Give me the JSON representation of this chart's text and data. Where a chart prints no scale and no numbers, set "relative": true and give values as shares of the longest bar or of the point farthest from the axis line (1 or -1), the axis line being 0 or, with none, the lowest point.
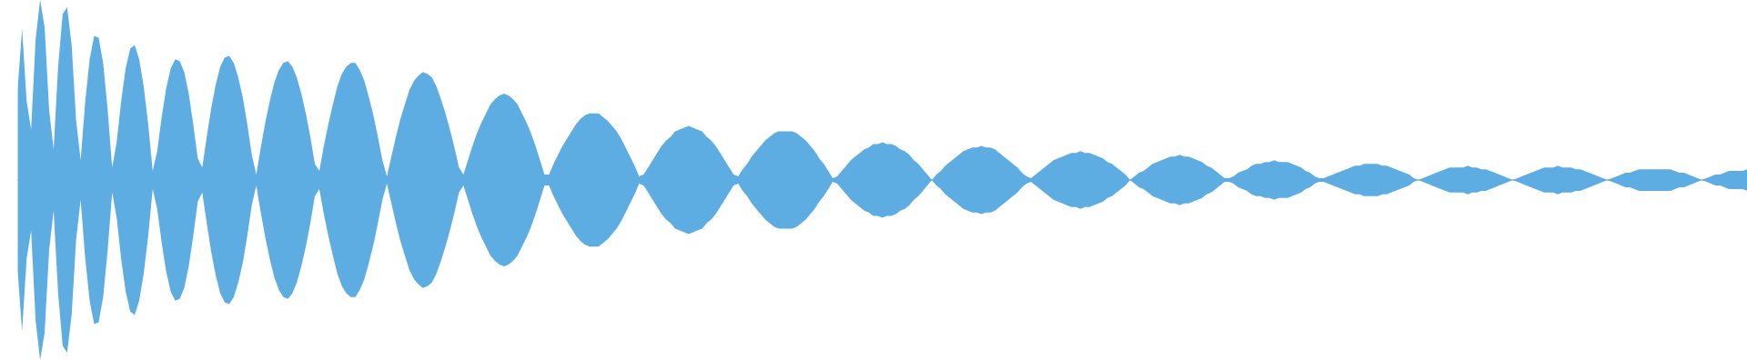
{
  "chart_data": {
    "type": "area",
    "relative": true,
    "categories": [
      null,
      null,
      null,
      null,
      null,
      null,
      null,
      null,
      null,
      null,
      null,
      null,
      null,
      null,
      null,
      null,
      null,
      null,
      null,
      null,
      null,
      null,
      null,
      null,
      null,
      null,
      null,
      null,
      null,
      null,
      null,
      null,
      null,
      null,
      null,
      null,
      null,
      null,
      null,
      null,
      null,
      null,
      null,
      null,
      null,
      null,
      null,
      null,
      null,
      null,
      null,
      null,
      null,
      null,
      null,
      null,
      null,
      null,
      null,
      null,
      null,
      null,
      null,
      null,
      null,
      null,
      null,
      null,
      null,
      null,
      null,
      null,
      null,
      null,
      null,
      null,
      null,
      null,
      null,
      null,
      null,
      null,
      null,
      null,
      null,
      null,
      null,
      null,
      null,
      null,
      null,
      null,
      null,
      null,
      null,
      null,
      null,
      null,
      null,
      null,
      null,
      null,
      null,
      null,
      null,
      null,
      null,
      null,
      null,
      null,
      null,
      null,
      null,
      null,
      null,
      null,
      null,
      null,
      null,
      null,
      null,
      null,
      null,
      null,
      null,
      null,
      null,
      null,
      null,
      null,
      null,
      null,
      null,
      null,
      null,
      null,
      null,
      null,
      null,
      null,
      null,
      null,
      null,
      null,
      null,
      null,
      null,
      null,
      null,
      null,
      null,
      null,
      null,
      null,
      null,
      null,
      null,
      null,
      null,
      null,
      null,
      null,
      null,
      null,
      null,
      null,
      null,
      null,
      null,
      null,
      null,
      null,
      null,
      null,
      null,
      null,
      null,
      null,
      null,
      null,
      null,
      null,
      null,
      null,
      null,
      null,
      null,
      null,
      null,
      null,
      null,
      null,
      null,
      null,
      null,
      null,
      null,
      null,
      null,
      null,
      null,
      null,
      null,
      null,
      null,
      null,
      null,
      null,
      null,
      null,
      null,
      null,
      null,
      null,
      null,
      null,
      null,
      null,
      null,
      null,
      null,
      null,
      null,
      null,
      null,
      null,
      null,
      null,
      null,
      null,
      null,
      null,
      null,
      null,
      null,
      null,
      null,
      null,
      null,
      null,
      null,
      null,
      null,
      null,
      null,
      null,
      null,
      null,
      null,
      null,
      null,
      null,
      null,
      null,
      null,
      null,
      null,
      null,
      null,
      null,
      null,
      null,
      null,
      null,
      null,
      null,
      null,
      null,
      null,
      null,
      null,
      null,
      null,
      null,
      null,
      null,
      null,
      null,
      null,
      null,
      null,
      null,
      null,
      null,
      null,
      null,
      null,
      null,
      null,
      null,
      null,
      null,
      null,
      null,
      null,
      null,
      null,
      null,
      null,
      null,
      null,
      null,
      null,
      null,
      null,
      null,
      null,
      null,
      null,
      null,
      null,
      null,
      null,
      null,
      null,
      null,
      null,
      null,
      null,
      null,
      null,
      null,
      null,
      null,
      null,
      null,
      null,
      null,
      null,
      null,
      null,
      null,
      null,
      null,
      null,
      null,
      null,
      null,
      null,
      null,
      null,
      null,
      null,
      null,
      null,
      null,
      null,
      null,
      null,
      null,
      null,
      null,
      null,
      null,
      null,
      null,
      null,
      null,
      null,
      null,
      null,
      null,
      null,
      null,
      null,
      null,
      null,
      null,
      null,
      null,
      null,
      null,
      null,
      null,
      null,
      null,
      null,
      null,
      null,
      null,
      null,
      null,
      null,
      null,
      null
    ],
    "series": [
      {
        "color": "#5dade2",
        "values": [
          0.5,
          0.84,
          0.44,
          0.28,
          0.78,
          1.0,
          0.85,
          0.39,
          0.17,
          0.63,
          0.92,
          0.96,
          0.75,
          0.33,
          0.11,
          0.43,
          0.67,
          0.8,
          0.79,
          0.65,
          0.39,
          0.07,
          0.21,
          0.44,
          0.62,
          0.73,
          0.75,
          0.67,
          0.52,
          0.31,
          0.05,
          0.16,
          0.35,
          0.51,
          0.62,
          0.67,
          0.66,
          0.6,
          0.48,
          0.31,
          0.12,
          0.07,
          0.24,
          0.4,
          0.53,
          0.63,
          0.68,
          0.69,
          0.65,
          0.57,
          0.46,
          0.31,
          0.14,
          0.03,
          0.18,
          0.32,
          0.44,
          0.54,
          0.61,
          0.65,
          0.66,
          0.63,
          0.57,
          0.48,
          0.37,
          0.24,
          0.09,
          0.05,
          0.19,
          0.31,
          0.42,
          0.52,
          0.59,
          0.63,
          0.65,
          0.65,
          0.61,
          0.55,
          0.46,
          0.36,
          0.24,
          0.11,
          0.02,
          0.13,
          0.24,
          0.34,
          0.42,
          0.5,
          0.55,
          0.58,
          0.6,
          0.59,
          0.57,
          0.52,
          0.45,
          0.37,
          0.28,
          0.18,
          0.07,
          0.03,
          0.11,
          0.19,
          0.26,
          0.32,
          0.37,
          0.42,
          0.45,
          0.47,
          0.48,
          0.47,
          0.45,
          0.42,
          0.37,
          0.32,
          0.26,
          0.19,
          0.11,
          0.03,
          0.03,
          0.09,
          0.14,
          0.19,
          0.23,
          0.27,
          0.31,
          0.34,
          0.36,
          0.37,
          0.37,
          0.37,
          0.35,
          0.33,
          0.3,
          0.27,
          0.23,
          0.18,
          0.13,
          0.08,
          0.02,
          0.03,
          0.07,
          0.11,
          0.15,
          0.19,
          0.22,
          0.24,
          0.27,
          0.28,
          0.29,
          0.3,
          0.29,
          0.28,
          0.27,
          0.24,
          0.22,
          0.19,
          0.15,
          0.11,
          0.07,
          0.03,
          0.02,
          0.06,
          0.09,
          0.13,
          0.16,
          0.19,
          0.22,
          0.24,
          0.26,
          0.27,
          0.27,
          0.27,
          0.27,
          0.26,
          0.24,
          0.22,
          0.19,
          0.16,
          0.12,
          0.09,
          0.05,
          0.01,
          0.02,
          0.05,
          0.08,
          0.11,
          0.13,
          0.15,
          0.17,
          0.18,
          0.2,
          0.2,
          0.21,
          0.2,
          0.2,
          0.19,
          0.17,
          0.16,
          0.14,
          0.11,
          0.09,
          0.06,
          0.03,
          0,
          0.03,
          0.05,
          0.08,
          0.1,
          0.12,
          0.14,
          0.16,
          0.17,
          0.18,
          0.18,
          0.19,
          0.18,
          0.18,
          0.17,
          0.15,
          0.13,
          0.11,
          0.09,
          0.07,
          0.04,
          0.02,
          0.01,
          0.03,
          0.05,
          0.07,
          0.09,
          0.11,
          0.12,
          0.13,
          0.14,
          0.15,
          0.15,
          0.16,
          0.15,
          0.15,
          0.14,
          0.13,
          0.12,
          0.1,
          0.09,
          0.07,
          0.05,
          0.03,
          0,
          0.02,
          0.04,
          0.05,
          0.07,
          0.09,
          0.1,
          0.11,
          0.12,
          0.13,
          0.13,
          0.14,
          0.13,
          0.13,
          0.12,
          0.11,
          0.1,
          0.08,
          0.07,
          0.05,
          0.03,
          0.01,
          0.01,
          0.02,
          0.04,
          0.05,
          0.06,
          0.08,
          0.09,
          0.09,
          0.1,
          0.1,
          0.11,
          0.1,
          0.1,
          0.1,
          0.09,
          0.08,
          0.07,
          0.05,
          0.04,
          0.02,
          0.01,
          0.01,
          0.02,
          0.03,
          0.04,
          0.05,
          0.06,
          0.07,
          0.08,
          0.08,
          0.09,
          0.09,
          0.09,
          0.09,
          0.08,
          0.08,
          0.07,
          0.06,
          0.05,
          0.04,
          0.03,
          0.01,
          0,
          0.01,
          0.02,
          0.03,
          0.04,
          0.05,
          0.06,
          0.07,
          0.07,
          0.07,
          0.07,
          0.08,
          0.07,
          0.07,
          0.06,
          0.06,
          0.05,
          0.04,
          0.03,
          0.02,
          0.01,
          0,
          0.01,
          0.02,
          0.03,
          0.04,
          0.05,
          0.06,
          0.07,
          0.07,
          0.07,
          0.08,
          0.07,
          0.07,
          0.07,
          0.06,
          0.06,
          0.05,
          0.04,
          0.03,
          0.02,
          0.01,
          0,
          0.01,
          0.02,
          0.03,
          0.04,
          0.04,
          0.05,
          0.06,
          0.06,
          0.06,
          0.06,
          0.06,
          0.06,
          0.06,
          0.06,
          0.05,
          0.04,
          0.04,
          0.03,
          0.02,
          0.01,
          0,
          0.01,
          0.02,
          0.03,
          0.03,
          0.04,
          0.05,
          0.05,
          0.05,
          0.05,
          0.06
        ]
      },
      {
        "color": "#5dade2",
        "values": [
          -0.5,
          -0.84,
          -0.44,
          -0.28,
          -0.78,
          -1.0,
          -0.85,
          -0.39,
          -0.17,
          -0.63,
          -0.92,
          -0.96,
          -0.75,
          -0.33,
          -0.11,
          -0.43,
          -0.67,
          -0.8,
          -0.79,
          -0.65,
          -0.39,
          -0.07,
          -0.21,
          -0.44,
          -0.62,
          -0.73,
          -0.75,
          -0.67,
          -0.52,
          -0.31,
          -0.05,
          -0.16,
          -0.35,
          -0.51,
          -0.62,
          -0.67,
          -0.66,
          -0.6,
          -0.48,
          -0.31,
          -0.12,
          -0.07,
          -0.24,
          -0.4,
          -0.53,
          -0.63,
          -0.68,
          -0.69,
          -0.65,
          -0.57,
          -0.46,
          -0.31,
          -0.14,
          -0.03,
          -0.18,
          -0.32,
          -0.44,
          -0.54,
          -0.61,
          -0.65,
          -0.66,
          -0.63,
          -0.57,
          -0.48,
          -0.37,
          -0.24,
          -0.09,
          -0.05,
          -0.19,
          -0.31,
          -0.42,
          -0.52,
          -0.59,
          -0.63,
          -0.65,
          -0.65,
          -0.61,
          -0.55,
          -0.46,
          -0.36,
          -0.24,
          -0.11,
          -0.02,
          -0.13,
          -0.24,
          -0.34,
          -0.42,
          -0.5,
          -0.55,
          -0.58,
          -0.6,
          -0.59,
          -0.57,
          -0.52,
          -0.45,
          -0.37,
          -0.28,
          -0.18,
          -0.07,
          -0.03,
          -0.11,
          -0.19,
          -0.26,
          -0.32,
          -0.37,
          -0.42,
          -0.45,
          -0.47,
          -0.48,
          -0.47,
          -0.45,
          -0.42,
          -0.37,
          -0.32,
          -0.26,
          -0.19,
          -0.11,
          -0.03,
          -0.03,
          -0.09,
          -0.14,
          -0.19,
          -0.23,
          -0.27,
          -0.31,
          -0.34,
          -0.36,
          -0.37,
          -0.37,
          -0.37,
          -0.35,
          -0.33,
          -0.3,
          -0.27,
          -0.23,
          -0.18,
          -0.13,
          -0.08,
          -0.02,
          -0.03,
          -0.07,
          -0.11,
          -0.15,
          -0.19,
          -0.22,
          -0.24,
          -0.27,
          -0.28,
          -0.29,
          -0.3,
          -0.29,
          -0.28,
          -0.27,
          -0.24,
          -0.22,
          -0.19,
          -0.15,
          -0.11,
          -0.07,
          -0.03,
          -0.02,
          -0.06,
          -0.09,
          -0.13,
          -0.16,
          -0.19,
          -0.22,
          -0.24,
          -0.26,
          -0.27,
          -0.27,
          -0.27,
          -0.27,
          -0.26,
          -0.24,
          -0.22,
          -0.19,
          -0.16,
          -0.12,
          -0.09,
          -0.05,
          -0.01,
          -0.02,
          -0.05,
          -0.08,
          -0.11,
          -0.13,
          -0.15,
          -0.17,
          -0.18,
          -0.2,
          -0.2,
          -0.21,
          -0.2,
          -0.2,
          -0.19,
          -0.17,
          -0.16,
          -0.14,
          -0.11,
          -0.09,
          -0.06,
          -0.03,
          0,
          -0.03,
          -0.05,
          -0.08,
          -0.1,
          -0.12,
          -0.14,
          -0.16,
          -0.17,
          -0.18,
          -0.18,
          -0.19,
          -0.18,
          -0.18,
          -0.17,
          -0.15,
          -0.13,
          -0.11,
          -0.09,
          -0.07,
          -0.04,
          -0.02,
          -0.01,
          -0.03,
          -0.05,
          -0.07,
          -0.09,
          -0.11,
          -0.12,
          -0.13,
          -0.14,
          -0.15,
          -0.15,
          -0.16,
          -0.15,
          -0.15,
          -0.14,
          -0.13,
          -0.12,
          -0.1,
          -0.09,
          -0.07,
          -0.05,
          -0.03,
          0,
          -0.02,
          -0.04,
          -0.05,
          -0.07,
          -0.09,
          -0.1,
          -0.11,
          -0.12,
          -0.13,
          -0.13,
          -0.14,
          -0.13,
          -0.13,
          -0.12,
          -0.11,
          -0.1,
          -0.08,
          -0.07,
          -0.05,
          -0.03,
          -0.01,
          -0.01,
          -0.02,
          -0.04,
          -0.05,
          -0.06,
          -0.08,
          -0.09,
          -0.09,
          -0.1,
          -0.1,
          -0.11,
          -0.1,
          -0.1,
          -0.1,
          -0.09,
          -0.08,
          -0.07,
          -0.05,
          -0.04,
          -0.02,
          -0.01,
          -0.01,
          -0.02,
          -0.03,
          -0.04,
          -0.05,
          -0.06,
          -0.07,
          -0.08,
          -0.08,
          -0.09,
          -0.09,
          -0.09,
          -0.09,
          -0.08,
          -0.08,
          -0.07,
          -0.06,
          -0.05,
          -0.04,
          -0.03,
          -0.01,
          0,
          -0.01,
          -0.02,
          -0.03,
          -0.04,
          -0.05,
          -0.06,
          -0.07,
          -0.07,
          -0.07,
          -0.07,
          -0.08,
          -0.07,
          -0.07,
          -0.06,
          -0.06,
          -0.05,
          -0.04,
          -0.03,
          -0.02,
          -0.01,
          0,
          -0.01,
          -0.02,
          -0.03,
          -0.04,
          -0.05,
          -0.06,
          -0.07,
          -0.07,
          -0.07,
          -0.08,
          -0.07,
          -0.07,
          -0.07,
          -0.06,
          -0.06,
          -0.05,
          -0.04,
          -0.03,
          -0.02,
          -0.01,
          0,
          -0.01,
          -0.02,
          -0.03,
          -0.04,
          -0.04,
          -0.05,
          -0.06,
          -0.06,
          -0.06,
          -0.06,
          -0.06,
          -0.06,
          -0.06,
          -0.06,
          -0.05,
          -0.04,
          -0.04,
          -0.03,
          -0.02,
          -0.01,
          0,
          -0.01,
          -0.02,
          -0.03,
          -0.03,
          -0.04,
          -0.05,
          -0.05,
          -0.05,
          -0.05,
          -0.06
        ]
      }
    ]
  }
}
